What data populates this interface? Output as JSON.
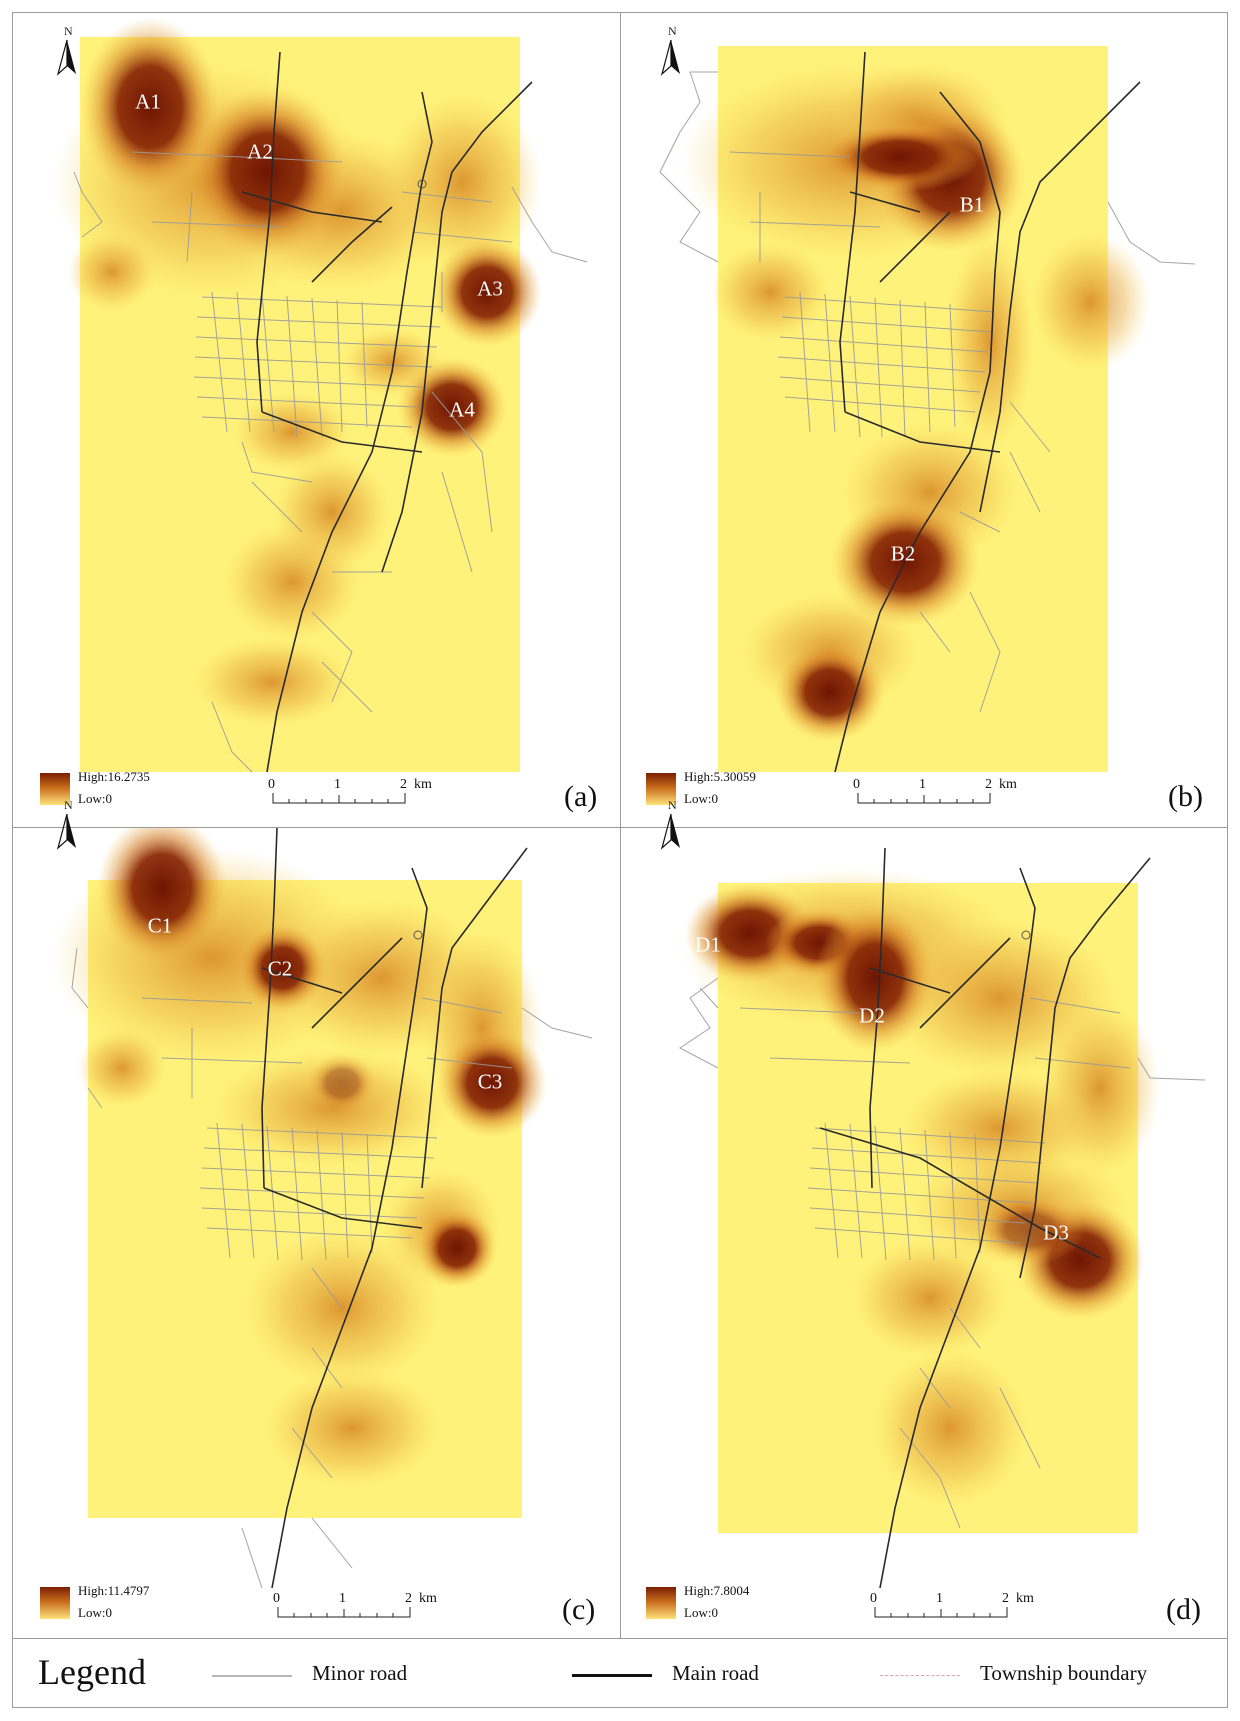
{
  "panels": [
    {
      "id": "a",
      "label": "(a)",
      "legend_high": "High:16.2735",
      "legend_low": "Low:0",
      "hotspots": [
        "A1",
        "A2",
        "A3",
        "A4"
      ]
    },
    {
      "id": "b",
      "label": "(b)",
      "legend_high": "High:5.30059",
      "legend_low": "Low:0",
      "hotspots": [
        "B1",
        "B2"
      ]
    },
    {
      "id": "c",
      "label": "(c)",
      "legend_high": "High:11.4797",
      "legend_low": "Low:0",
      "hotspots": [
        "C1",
        "C2",
        "C3"
      ]
    },
    {
      "id": "d",
      "label": "(d)",
      "legend_high": "High:7.8004",
      "legend_low": "Low:0",
      "hotspots": [
        "D1",
        "D2",
        "D3"
      ]
    }
  ],
  "north_label": "N",
  "scale": {
    "ticks": [
      "0",
      "1",
      "2"
    ],
    "unit": "km"
  },
  "legend": {
    "title": "Legend",
    "items": [
      {
        "label": "Minor road",
        "color": "#b8b8b8"
      },
      {
        "label": "Main road",
        "color": "#111111"
      },
      {
        "label": "Township boundary",
        "color": "#d9a3a8"
      }
    ]
  },
  "colors": {
    "low": "#fff27a",
    "mid": "#e9a73c",
    "high": "#6e1503"
  }
}
